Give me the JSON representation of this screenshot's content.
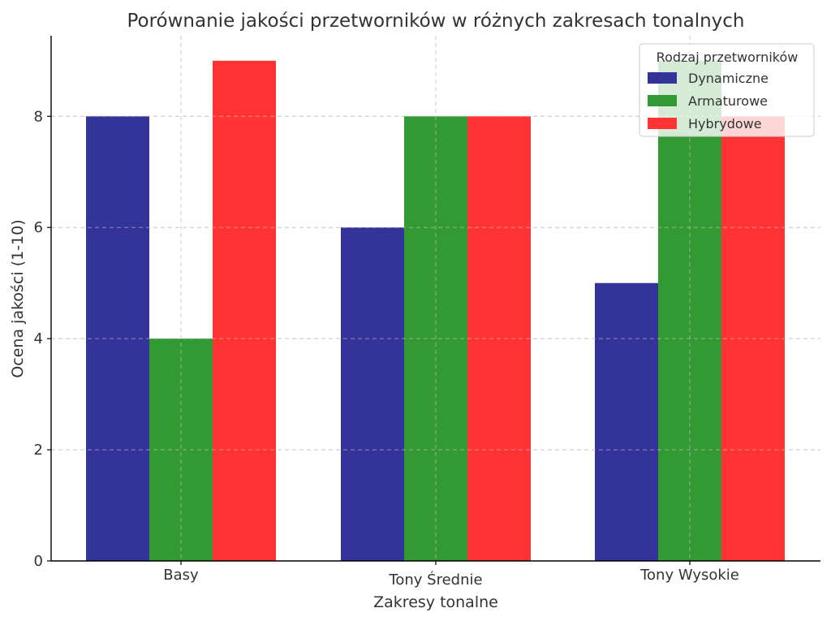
{
  "chart_data": {
    "type": "bar",
    "title": "Porównanie jakości przetworników w różnych zakresach tonalnych",
    "xlabel": "Zakresy tonalne",
    "ylabel": "Ocena jakości (1-10)",
    "categories": [
      "Basy",
      "Tony Średnie",
      "Tony Wysokie"
    ],
    "series": [
      {
        "name": "Dynamiczne",
        "values": [
          8,
          6,
          5
        ],
        "color": "#333399"
      },
      {
        "name": "Armaturowe",
        "values": [
          4,
          8,
          9
        ],
        "color": "#339933"
      },
      {
        "name": "Hybrydowe",
        "values": [
          9,
          8,
          8
        ],
        "color": "#ff3333"
      }
    ],
    "ylim": [
      0,
      9.45
    ],
    "yticks": [
      0,
      2,
      4,
      6,
      8
    ],
    "grid": true,
    "legend": {
      "title": "Rodzaj przetworników",
      "position": "top-right"
    }
  }
}
